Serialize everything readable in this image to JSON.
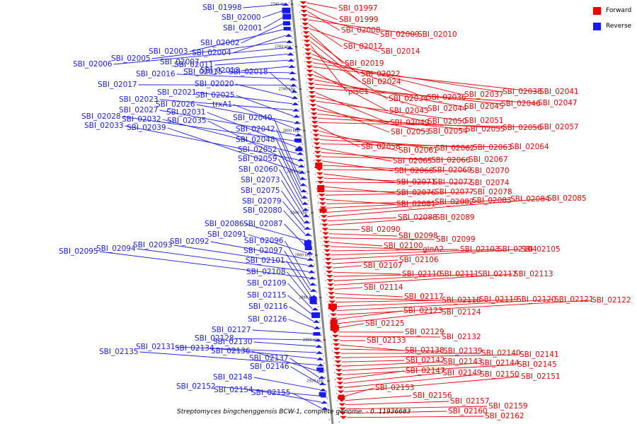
{
  "legend": {
    "forward": {
      "label": "Forward",
      "color": "#ee0000"
    },
    "reverse": {
      "label": "Reverse",
      "color": "#1a1aee"
    }
  },
  "caption": "Streptomyces bingchenggensis BCW-1, complete genome. - 0..11936683",
  "axis_labels": [
    "2740 kbp",
    "2760 kbp",
    "2780 kbp",
    "2800 kbp",
    "2820 kbp",
    "2840 kbp",
    "2860 kbp",
    "2880 kbp",
    "2900 kbp",
    "2920 kbp"
  ],
  "reverse_genes": [
    "SBI_01998",
    "SBI_02000",
    "SBI_02001",
    "SBI_02002",
    "SBI_02003",
    "SBI_02004",
    "SBI_02005",
    "SBI_02006",
    "SBI_02007",
    "SBI_02011",
    "SBI_02013",
    "SBI_02015",
    "SBI_02016",
    "SBI_02017",
    "SBI_02018",
    "SBI_02020",
    "SBI_02021",
    "SBI_02023",
    "SBI_02025",
    "SBI_02026",
    "trxA1",
    "SBI_02027",
    "SBI_02028",
    "SBI_02031",
    "SBI_02032",
    "SBI_02033",
    "SBI_02035",
    "SBI_02039",
    "SBI_02040",
    "SBI_02042",
    "SBI_02048",
    "SBI_02052",
    "SBI_02059",
    "SBI_02060",
    "SBI_02073",
    "SBI_02075",
    "SBI_02079",
    "SBI_02080",
    "SBI_02086",
    "SBI_02087",
    "SBI_02091",
    "SBI_02092",
    "SBI_02093",
    "SBI_02094",
    "SBI_02095",
    "SBI_02096",
    "SBI_02097",
    "SBI_02101",
    "SBI_02108",
    "SBI_02109",
    "SBI_02115",
    "SBI_02116",
    "SBI_02126",
    "SBI_02127",
    "SBI_02128",
    "SBI_02130",
    "SBI_02131",
    "SBI_02134",
    "SBI_02135",
    "SBI_02136",
    "SBI_02137",
    "SBI_02146",
    "SBI_02148",
    "SBI_02152",
    "SBI_02154",
    "SBI_02155"
  ],
  "forward_genes": [
    "SBI_01997",
    "SBI_01999",
    "SBI_02008",
    "SBI_02009",
    "SBI_02010",
    "SBI_02012",
    "SBI_02014",
    "SBI_02019",
    "SBI_02022",
    "SBI_02024",
    "plsC1",
    "SBI_02034",
    "SBI_02036",
    "SBI_02037",
    "SBI_02038",
    "SBI_02041",
    "SBI_02043",
    "SBI_02044",
    "SBI_02045",
    "SBI_02046",
    "SBI_02047",
    "SBI_02049",
    "SBI_02050",
    "SBI_02051",
    "SBI_02053",
    "SBI_02054",
    "SBI_02055",
    "SBI_02056",
    "SBI_02057",
    "SBI_02058",
    "SBI_02061",
    "SBI_02062",
    "SBI_02063",
    "SBI_02064",
    "SBI_02065",
    "SBI_02066",
    "SBI_02067",
    "SBI_02068",
    "SBI_02069",
    "SBI_02070",
    "SBI_02071",
    "SBI_02072",
    "SBI_02074",
    "SBI_02076",
    "SBI_02077",
    "SBI_02078",
    "SBI_02081",
    "SBI_02082",
    "SBI_02083",
    "SBI_02084",
    "SBI_02085",
    "SBI_02088",
    "SBI_02089",
    "SBI_02090",
    "SBI_02098",
    "SBI_02099",
    "SBI_02100",
    "glnA2",
    "SBI_02103",
    "SBI_02104",
    "SBI_02105",
    "SBI_02106",
    "SBI_02107",
    "SBI_02110",
    "SBI_02111",
    "SBI_02112",
    "SBI_02113",
    "SBI_02114",
    "SBI_02117",
    "SBI_02118",
    "SBI_02119",
    "SBI_02120",
    "SBI_02121",
    "SBI_02122",
    "SBI_02123",
    "SBI_02124",
    "SBI_02125",
    "SBI_02129",
    "SBI_02132",
    "SBI_02133",
    "SBI_02138",
    "SBI_02139",
    "SBI_02140",
    "SBI_02141",
    "SBI_02142",
    "SBI_02143",
    "SBI_02144",
    "SBI_02145",
    "SBI_02147",
    "SBI_02149",
    "SBI_02150",
    "SBI_02151",
    "SBI_02153",
    "SBI_02156",
    "SBI_02157",
    "SBI_02159",
    "SBI_02160",
    "SBI_02162"
  ]
}
